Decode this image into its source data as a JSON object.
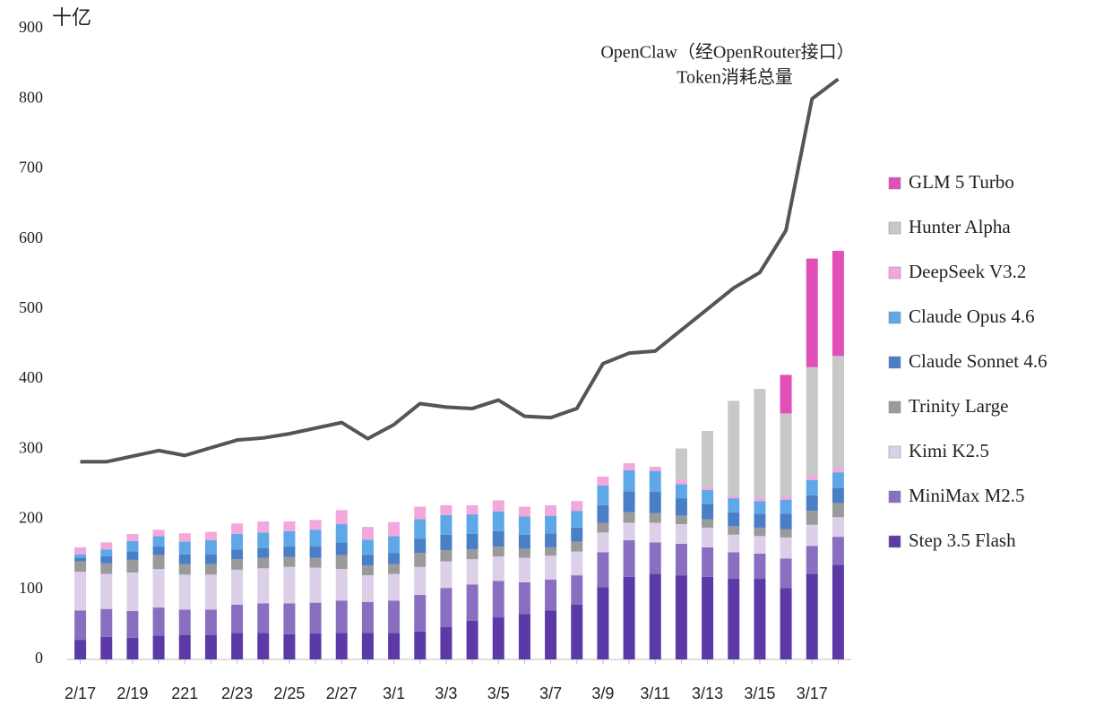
{
  "chart_data": {
    "type": "stacked_bar_line",
    "y_unit": "十亿",
    "annotations": [
      "OpenClaw（经OpenRouter接口）",
      "Token消耗总量"
    ],
    "categories": [
      "2/17",
      null,
      "2/19",
      null,
      "221",
      null,
      "2/23",
      null,
      "2/25",
      null,
      "2/27",
      null,
      "3/1",
      null,
      "3/3",
      null,
      "3/5",
      null,
      "3/7",
      null,
      "3/9",
      null,
      "3/11",
      null,
      "3/13",
      null,
      "3/15",
      null,
      "3/17",
      null
    ],
    "ylim": [
      0,
      900
    ],
    "yticks": [
      0,
      100,
      200,
      300,
      400,
      500,
      600,
      700,
      800,
      900
    ],
    "series": [
      {
        "name": "Step 3.5 Flash",
        "color": "#5b3aa8",
        "values": [
          28,
          32,
          31,
          34,
          35,
          35,
          38,
          38,
          36,
          37,
          38,
          38,
          38,
          40,
          46,
          55,
          60,
          65,
          70,
          78,
          103,
          118,
          122,
          120,
          118,
          115,
          115,
          102,
          122,
          135
        ]
      },
      {
        "name": "MiniMax M2.5",
        "color": "#8a6fc0",
        "values": [
          42,
          40,
          38,
          40,
          36,
          36,
          40,
          42,
          44,
          44,
          46,
          44,
          46,
          52,
          56,
          52,
          52,
          45,
          44,
          42,
          50,
          52,
          45,
          45,
          42,
          38,
          36,
          42,
          40,
          40
        ]
      },
      {
        "name": "Kimi K2.5",
        "color": "#dccfe8",
        "values": [
          55,
          50,
          55,
          55,
          50,
          50,
          50,
          50,
          52,
          50,
          45,
          38,
          38,
          40,
          38,
          36,
          35,
          35,
          34,
          34,
          28,
          25,
          28,
          28,
          28,
          25,
          25,
          30,
          30,
          28
        ]
      },
      {
        "name": "Trinity Large",
        "color": "#9a9a9a",
        "values": [
          15,
          15,
          18,
          20,
          15,
          15,
          15,
          15,
          14,
          14,
          20,
          14,
          14,
          20,
          16,
          14,
          14,
          13,
          12,
          14,
          14,
          15,
          14,
          12,
          12,
          12,
          12,
          12,
          20,
          20
        ]
      },
      {
        "name": "Claude Sonnet 4.6",
        "color": "#4a7fc8",
        "values": [
          5,
          10,
          12,
          12,
          14,
          14,
          14,
          14,
          15,
          16,
          18,
          15,
          16,
          20,
          22,
          22,
          22,
          20,
          20,
          20,
          25,
          30,
          30,
          25,
          22,
          20,
          20,
          22,
          22,
          22
        ]
      },
      {
        "name": "Claude Opus 4.6",
        "color": "#5fa8e8",
        "values": [
          5,
          10,
          15,
          15,
          18,
          20,
          22,
          22,
          22,
          24,
          26,
          22,
          24,
          28,
          28,
          28,
          28,
          26,
          25,
          24,
          28,
          30,
          30,
          20,
          20,
          20,
          18,
          20,
          22,
          22
        ]
      },
      {
        "name": "DeepSeek V3.2",
        "color": "#f2a8dc",
        "values": [
          10,
          10,
          10,
          9,
          12,
          12,
          15,
          16,
          14,
          14,
          20,
          18,
          20,
          18,
          14,
          13,
          16,
          14,
          15,
          14,
          13,
          10,
          6,
          6,
          4,
          4,
          5,
          5,
          6,
          6
        ]
      },
      {
        "name": "Hunter Alpha",
        "color": "#c8c8c8",
        "values": [
          0,
          0,
          0,
          0,
          0,
          0,
          0,
          0,
          0,
          0,
          0,
          0,
          0,
          0,
          0,
          0,
          0,
          0,
          0,
          0,
          0,
          0,
          0,
          45,
          80,
          135,
          155,
          118,
          155,
          160
        ]
      },
      {
        "name": "GLM 5 Turbo",
        "color": "#e050b8",
        "values": [
          0,
          0,
          0,
          0,
          0,
          0,
          0,
          0,
          0,
          0,
          0,
          0,
          0,
          0,
          0,
          0,
          0,
          0,
          0,
          0,
          0,
          0,
          0,
          0,
          0,
          0,
          0,
          55,
          155,
          150
        ]
      }
    ],
    "line": {
      "color": "#555555",
      "values": [
        282,
        282,
        290,
        298,
        291,
        302,
        313,
        316,
        322,
        330,
        338,
        315,
        335,
        365,
        360,
        358,
        370,
        347,
        345,
        358,
        422,
        437,
        440,
        470,
        500,
        530,
        552,
        612,
        800,
        828
      ]
    }
  }
}
